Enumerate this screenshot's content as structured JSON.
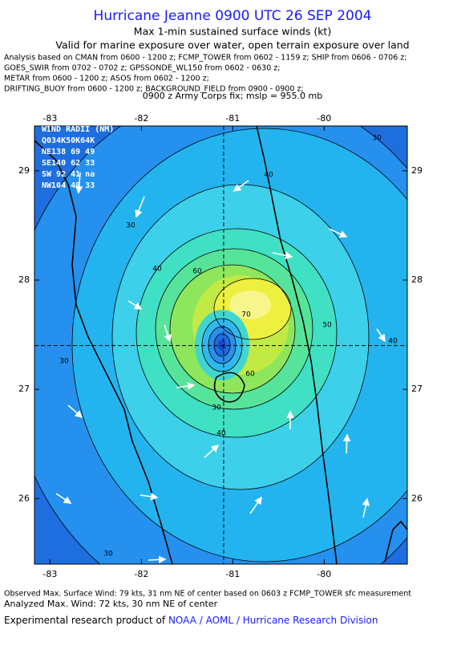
{
  "header": {
    "title": "Hurricane Jeanne 0900 UTC 26 SEP 2004",
    "subtitle": "Max 1-min sustained surface winds (kt)",
    "validity": "Valid for marine exposure over water, open terrain exposure over land",
    "analysis_lines": [
      "Analysis based on  CMAN from 0600 - 1200 z;  FCMP_TOWER from 0602 - 1159 z;  SHIP from 0606 - 0706 z;",
      "GOES_SWIR from 0702 - 0702 z;  GPSSONDE_WL150 from 0602 - 0630 z;",
      "METAR from 0600 - 1200 z;  ASOS from 0602 - 1200 z;",
      "DRIFTING_BUOY from 0600 - 1200 z;  BACKGROUND_FIELD from 0900 - 0900 z;"
    ],
    "fix": "0900 z Army Corps fix; mslp = 955.0 mb"
  },
  "map": {
    "xlim": [
      -83.17,
      -79.09
    ],
    "ylim": [
      25.4,
      29.41
    ],
    "xticks": [
      -83,
      -82,
      -81,
      -80
    ],
    "yticks": [
      29,
      28,
      27,
      26
    ],
    "center": [
      -81.1,
      27.4
    ],
    "wind_radii": [
      "WIND RADII (NM)",
      "Q034K50K64K",
      "NE138 69 49",
      "SE140 62 33",
      "SW 92 41 na",
      "NW104 49 33"
    ],
    "contour_labels": [
      30,
      30,
      40,
      40,
      60,
      70,
      50,
      40,
      30,
      60,
      30,
      40,
      30
    ]
  },
  "footer": {
    "observed": "Observed Max. Surface Wind: 79 kts, 31 nm NE of center based on 0603 z FCMP_TOWER sfc measurement",
    "analyzed": "Analyzed Max. Wind: 72 kts, 30 nm NE of center",
    "credit_prefix": "Experimental research product of",
    "credit_org": "NOAA / AOML / Hurricane Research Division"
  }
}
